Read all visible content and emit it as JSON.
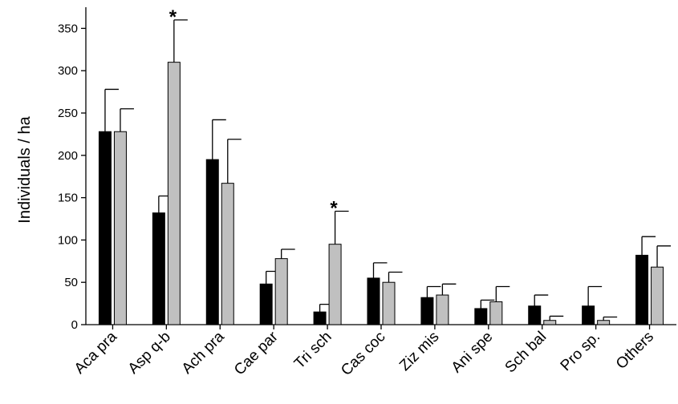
{
  "chart_data": {
    "type": "bar",
    "title": "",
    "xlabel": "",
    "ylabel": "Individuals / ha",
    "ylim": [
      0,
      375
    ],
    "yticks": [
      0,
      50,
      100,
      150,
      200,
      250,
      300,
      350
    ],
    "grid": false,
    "legend": "none",
    "categories": [
      "Aca pra",
      "Asp q-b",
      "Ach pra",
      "Cae par",
      "Tri sch",
      "Cas coc",
      "Ziz mis",
      "Ani spe",
      "Sch bal",
      "Pro sp.",
      "Others"
    ],
    "series": [
      {
        "color": "#000000",
        "values": [
          228,
          132,
          195,
          48,
          15,
          55,
          32,
          19,
          22,
          22,
          82
        ],
        "errors": [
          50,
          20,
          47,
          15,
          9,
          18,
          13,
          10,
          13,
          23,
          22
        ]
      },
      {
        "color": "#c0c0c0",
        "values": [
          228,
          310,
          167,
          78,
          95,
          50,
          35,
          27,
          5,
          5,
          68
        ],
        "errors": [
          27,
          50,
          52,
          11,
          39,
          12,
          13,
          18,
          5,
          4,
          25
        ]
      }
    ],
    "annotations": [
      {
        "text": "*",
        "category": "Asp q-b"
      },
      {
        "text": "*",
        "category": "Tri sch"
      }
    ]
  }
}
